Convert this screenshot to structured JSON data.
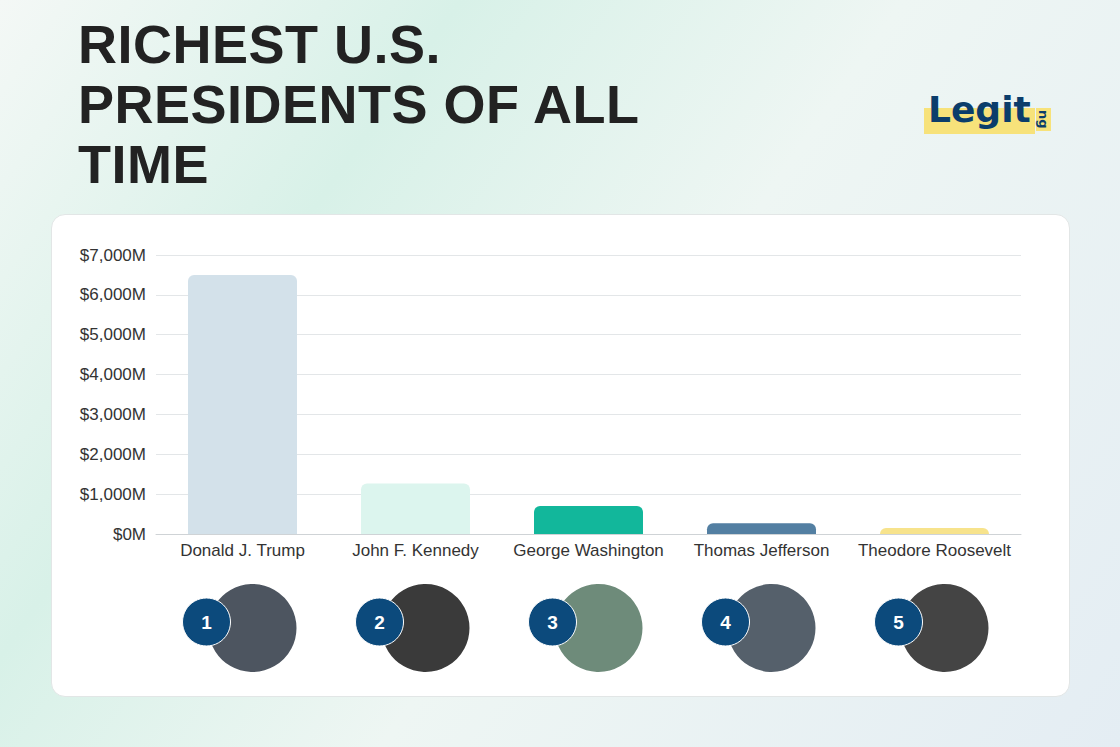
{
  "chart_data": {
    "type": "bar",
    "title": "RICHEST U.S. PRESIDENTS OF ALL TIME",
    "logo": "Legit",
    "logo_suffix": "ng",
    "categories": [
      "Donald J. Trump",
      "John F. Kennedy",
      "George Washington",
      "Thomas Jefferson",
      "Theodore Roosevelt"
    ],
    "values": [
      6500,
      1270,
      700,
      270,
      150
    ],
    "colors": [
      "#d3e1ea",
      "#dcf5ee",
      "#12b79b",
      "#537fa2",
      "#f7e38c"
    ],
    "ranks": [
      1,
      2,
      3,
      4,
      5
    ],
    "ylim": [
      0,
      7000
    ],
    "yticks": [
      {
        "value": 0,
        "label": "$0M"
      },
      {
        "value": 1000,
        "label": "$1,000M"
      },
      {
        "value": 2000,
        "label": "$2,000M"
      },
      {
        "value": 3000,
        "label": "$3,000M"
      },
      {
        "value": 4000,
        "label": "$4,000M"
      },
      {
        "value": 5000,
        "label": "$5,000M"
      },
      {
        "value": 6000,
        "label": "$6,000M"
      },
      {
        "value": 7000,
        "label": "$7,000M"
      }
    ],
    "grid": true
  }
}
